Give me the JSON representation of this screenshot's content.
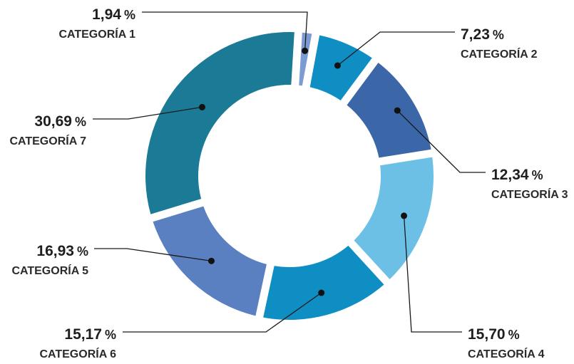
{
  "chart_data": {
    "type": "pie",
    "variant": "donut",
    "slices": [
      {
        "label": "CATEGORÍA 1",
        "value": 1.94,
        "value_label": "1,94",
        "unit": "%",
        "color": "#7b9bd2"
      },
      {
        "label": "CATEGORÍA 2",
        "value": 7.23,
        "value_label": "7,23",
        "unit": "%",
        "color": "#0f8ec4"
      },
      {
        "label": "CATEGORÍA 3",
        "value": 12.34,
        "value_label": "12,34",
        "unit": "%",
        "color": "#3b67a9"
      },
      {
        "label": "CATEGORÍA 4",
        "value": 15.7,
        "value_label": "15,70",
        "unit": "%",
        "color": "#6cc0e5"
      },
      {
        "label": "CATEGORÍA 6",
        "value": 15.17,
        "value_label": "15,17",
        "unit": "%",
        "color": "#0f8ec4"
      },
      {
        "label": "CATEGORÍA 5",
        "value": 16.93,
        "value_label": "16,93",
        "unit": "%",
        "color": "#5b80c2"
      },
      {
        "label": "CATEGORÍA 7",
        "value": 30.69,
        "value_label": "30,69",
        "unit": "%",
        "color": "#1b7a95"
      }
    ],
    "legend": "none",
    "label_style": "callout lines with dot markers"
  }
}
